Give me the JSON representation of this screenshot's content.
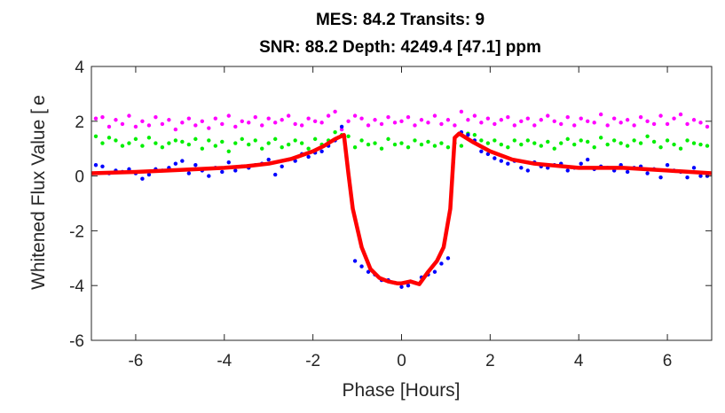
{
  "chart_data": {
    "type": "scatter",
    "title_line1": "MES: 84.2   Transits: 9",
    "title_line2": "SNR: 88.2    Depth: 4249.4 [47.1] ppm",
    "xlabel": "Phase [Hours]",
    "ylabel": "Whitened Flux Value [",
    "ylabel_overlap_glyph": "e",
    "xlim": [
      -7,
      7
    ],
    "ylim": [
      -6,
      4
    ],
    "xticks": [
      -6,
      -4,
      -2,
      0,
      2,
      4,
      6
    ],
    "yticks": [
      -6,
      -4,
      -2,
      0,
      2,
      4
    ],
    "grid": false,
    "colors": {
      "binned": "#0000ff",
      "offset_1": "#00ee00",
      "offset_2": "#ff00ff",
      "model": "#ff0000"
    },
    "series": [
      {
        "role": "model",
        "color": "#ff0000",
        "x": [
          -7.0,
          -6.0,
          -5.0,
          -4.0,
          -3.5,
          -3.0,
          -2.5,
          -2.0,
          -1.75,
          -1.5,
          -1.3,
          -1.2,
          -1.1,
          -0.9,
          -0.7,
          -0.5,
          -0.3,
          -0.1,
          0.0,
          0.2,
          0.4,
          0.6,
          0.8,
          0.95,
          1.1,
          1.2,
          1.3,
          1.6,
          2.0,
          2.5,
          3.0,
          4.0,
          5.0,
          6.0,
          7.0
        ],
        "y": [
          0.1,
          0.15,
          0.22,
          0.3,
          0.36,
          0.45,
          0.62,
          0.9,
          1.1,
          1.35,
          1.5,
          0.1,
          -1.2,
          -2.6,
          -3.4,
          -3.72,
          -3.85,
          -3.92,
          -3.92,
          -3.85,
          -3.95,
          -3.5,
          -3.1,
          -2.6,
          -1.2,
          1.4,
          1.55,
          1.25,
          0.9,
          0.6,
          0.45,
          0.3,
          0.3,
          0.2,
          0.1
        ]
      },
      {
        "role": "binned",
        "color": "#0000ff",
        "x": [
          -6.9,
          -6.75,
          -6.6,
          -6.45,
          -6.3,
          -6.15,
          -6.0,
          -5.85,
          -5.7,
          -5.55,
          -5.4,
          -5.25,
          -5.1,
          -4.95,
          -4.8,
          -4.65,
          -4.5,
          -4.35,
          -4.2,
          -4.05,
          -3.9,
          -3.75,
          -3.6,
          -3.45,
          -3.3,
          -3.15,
          -3.0,
          -2.85,
          -2.7,
          -2.55,
          -2.4,
          -2.25,
          -2.1,
          -1.95,
          -1.8,
          -1.65,
          -1.5,
          -1.35,
          -1.05,
          -0.9,
          -0.75,
          -0.6,
          -0.45,
          -0.3,
          -0.15,
          0.0,
          0.15,
          0.3,
          0.45,
          0.6,
          0.75,
          0.9,
          1.05,
          1.35,
          1.5,
          1.65,
          1.8,
          1.95,
          2.1,
          2.25,
          2.4,
          2.55,
          2.7,
          2.85,
          3.0,
          3.15,
          3.3,
          3.45,
          3.6,
          3.75,
          3.9,
          4.05,
          4.2,
          4.35,
          4.5,
          4.65,
          4.8,
          4.95,
          5.1,
          5.25,
          5.4,
          5.55,
          5.7,
          5.85,
          6.0,
          6.15,
          6.3,
          6.45,
          6.6,
          6.75,
          6.9
        ],
        "y": [
          0.4,
          0.35,
          0.1,
          0.2,
          0.15,
          0.25,
          0.1,
          -0.1,
          0.05,
          0.25,
          0.2,
          0.3,
          0.45,
          0.55,
          0.1,
          0.4,
          0.2,
          0.0,
          0.3,
          0.15,
          0.5,
          0.2,
          0.35,
          0.3,
          0.4,
          0.45,
          0.6,
          0.05,
          0.35,
          0.6,
          0.55,
          0.8,
          0.7,
          0.85,
          0.9,
          1.1,
          1.3,
          1.8,
          -3.1,
          -3.3,
          -3.5,
          -3.6,
          -3.8,
          -3.8,
          -3.9,
          -4.05,
          -4.0,
          -3.9,
          -3.7,
          -3.6,
          -3.5,
          -3.2,
          -3.0,
          1.6,
          1.5,
          1.3,
          0.9,
          0.8,
          0.65,
          0.55,
          0.45,
          0.55,
          0.3,
          0.2,
          0.5,
          0.35,
          0.3,
          0.4,
          0.45,
          0.2,
          0.3,
          0.45,
          0.6,
          0.25,
          0.35,
          0.3,
          0.2,
          0.4,
          0.15,
          0.3,
          0.35,
          0.1,
          0.25,
          -0.05,
          0.4,
          0.2,
          0.15,
          -0.05,
          0.3,
          0.0,
          0.0
        ]
      },
      {
        "role": "offset_1",
        "color": "#00ee00",
        "x": [
          -6.9,
          -6.75,
          -6.6,
          -6.45,
          -6.3,
          -6.15,
          -6.0,
          -5.85,
          -5.7,
          -5.55,
          -5.4,
          -5.25,
          -5.1,
          -4.95,
          -4.8,
          -4.65,
          -4.5,
          -4.35,
          -4.2,
          -4.05,
          -3.9,
          -3.75,
          -3.6,
          -3.45,
          -3.3,
          -3.15,
          -3.0,
          -2.85,
          -2.7,
          -2.55,
          -2.4,
          -2.25,
          -2.1,
          -1.95,
          -1.8,
          -1.65,
          -1.5,
          -1.35,
          -1.2,
          -1.05,
          -0.9,
          -0.75,
          -0.6,
          -0.45,
          -0.3,
          -0.15,
          0.0,
          0.15,
          0.3,
          0.45,
          0.6,
          0.75,
          0.9,
          1.05,
          1.2,
          1.35,
          1.5,
          1.65,
          1.8,
          1.95,
          2.1,
          2.25,
          2.4,
          2.55,
          2.7,
          2.85,
          3.0,
          3.15,
          3.3,
          3.45,
          3.6,
          3.75,
          3.9,
          4.05,
          4.2,
          4.35,
          4.5,
          4.65,
          4.8,
          4.95,
          5.1,
          5.25,
          5.4,
          5.55,
          5.7,
          5.85,
          6.0,
          6.15,
          6.3,
          6.45,
          6.6,
          6.75,
          6.9
        ],
        "y": [
          1.45,
          1.2,
          1.4,
          1.3,
          1.1,
          1.2,
          1.35,
          1.1,
          1.4,
          1.2,
          1.05,
          1.2,
          1.3,
          1.25,
          1.15,
          1.35,
          1.0,
          1.3,
          1.1,
          1.25,
          0.9,
          1.2,
          1.35,
          1.15,
          1.3,
          1.0,
          1.2,
          1.35,
          1.05,
          1.15,
          1.3,
          1.2,
          1.0,
          1.35,
          1.15,
          1.3,
          1.6,
          1.5,
          1.45,
          1.05,
          1.3,
          1.15,
          1.2,
          1.0,
          1.35,
          1.15,
          1.2,
          1.05,
          1.3,
          1.15,
          1.25,
          1.1,
          1.2,
          1.05,
          1.2,
          1.1,
          1.55,
          1.5,
          1.3,
          1.2,
          1.3,
          1.15,
          1.05,
          1.3,
          1.15,
          1.3,
          1.2,
          1.1,
          1.25,
          1.0,
          1.2,
          1.35,
          1.15,
          1.3,
          1.25,
          1.05,
          1.4,
          1.15,
          1.3,
          1.2,
          1.1,
          1.3,
          1.2,
          1.45,
          1.25,
          1.05,
          1.3,
          1.15,
          1.0,
          1.3,
          1.2,
          1.15,
          1.1
        ]
      },
      {
        "role": "offset_2",
        "color": "#ff00ff",
        "x": [
          -6.9,
          -6.75,
          -6.6,
          -6.45,
          -6.3,
          -6.15,
          -6.0,
          -5.85,
          -5.7,
          -5.55,
          -5.4,
          -5.25,
          -5.1,
          -4.95,
          -4.8,
          -4.65,
          -4.5,
          -4.35,
          -4.2,
          -4.05,
          -3.9,
          -3.75,
          -3.6,
          -3.45,
          -3.3,
          -3.15,
          -3.0,
          -2.85,
          -2.7,
          -2.55,
          -2.4,
          -2.25,
          -2.1,
          -1.95,
          -1.8,
          -1.65,
          -1.5,
          -1.35,
          -1.2,
          -1.05,
          -0.9,
          -0.75,
          -0.6,
          -0.45,
          -0.3,
          -0.15,
          0.0,
          0.15,
          0.3,
          0.45,
          0.6,
          0.75,
          0.9,
          1.05,
          1.2,
          1.35,
          1.5,
          1.65,
          1.8,
          1.95,
          2.1,
          2.25,
          2.4,
          2.55,
          2.7,
          2.85,
          3.0,
          3.15,
          3.3,
          3.45,
          3.6,
          3.75,
          3.9,
          4.05,
          4.2,
          4.35,
          4.5,
          4.65,
          4.8,
          4.95,
          5.1,
          5.25,
          5.4,
          5.55,
          5.7,
          5.85,
          6.0,
          6.15,
          6.3,
          6.45,
          6.6,
          6.75,
          6.9
        ],
        "y": [
          2.1,
          2.15,
          1.8,
          2.05,
          1.9,
          2.2,
          1.8,
          2.0,
          1.85,
          2.15,
          1.9,
          2.05,
          1.7,
          1.95,
          2.1,
          1.85,
          2.0,
          1.75,
          2.1,
          1.9,
          2.2,
          1.8,
          2.0,
          1.95,
          2.15,
          1.85,
          2.1,
          1.95,
          2.05,
          2.2,
          1.9,
          1.85,
          2.1,
          2.0,
          1.95,
          2.2,
          2.35,
          1.7,
          2.0,
          2.2,
          2.1,
          1.85,
          2.05,
          1.9,
          2.15,
          1.95,
          2.0,
          2.15,
          1.85,
          2.05,
          1.95,
          2.2,
          1.9,
          2.05,
          1.85,
          2.35,
          2.05,
          2.2,
          1.95,
          2.1,
          1.9,
          2.05,
          2.15,
          1.85,
          2.0,
          2.1,
          1.85,
          2.05,
          2.2,
          2.0,
          1.9,
          2.15,
          1.85,
          2.1,
          2.0,
          1.95,
          2.25,
          1.85,
          2.1,
          1.95,
          2.05,
          1.85,
          2.15,
          2.0,
          1.9,
          2.2,
          1.9,
          2.1,
          2.25,
          1.9,
          2.05,
          1.95,
          1.8
        ]
      }
    ]
  }
}
